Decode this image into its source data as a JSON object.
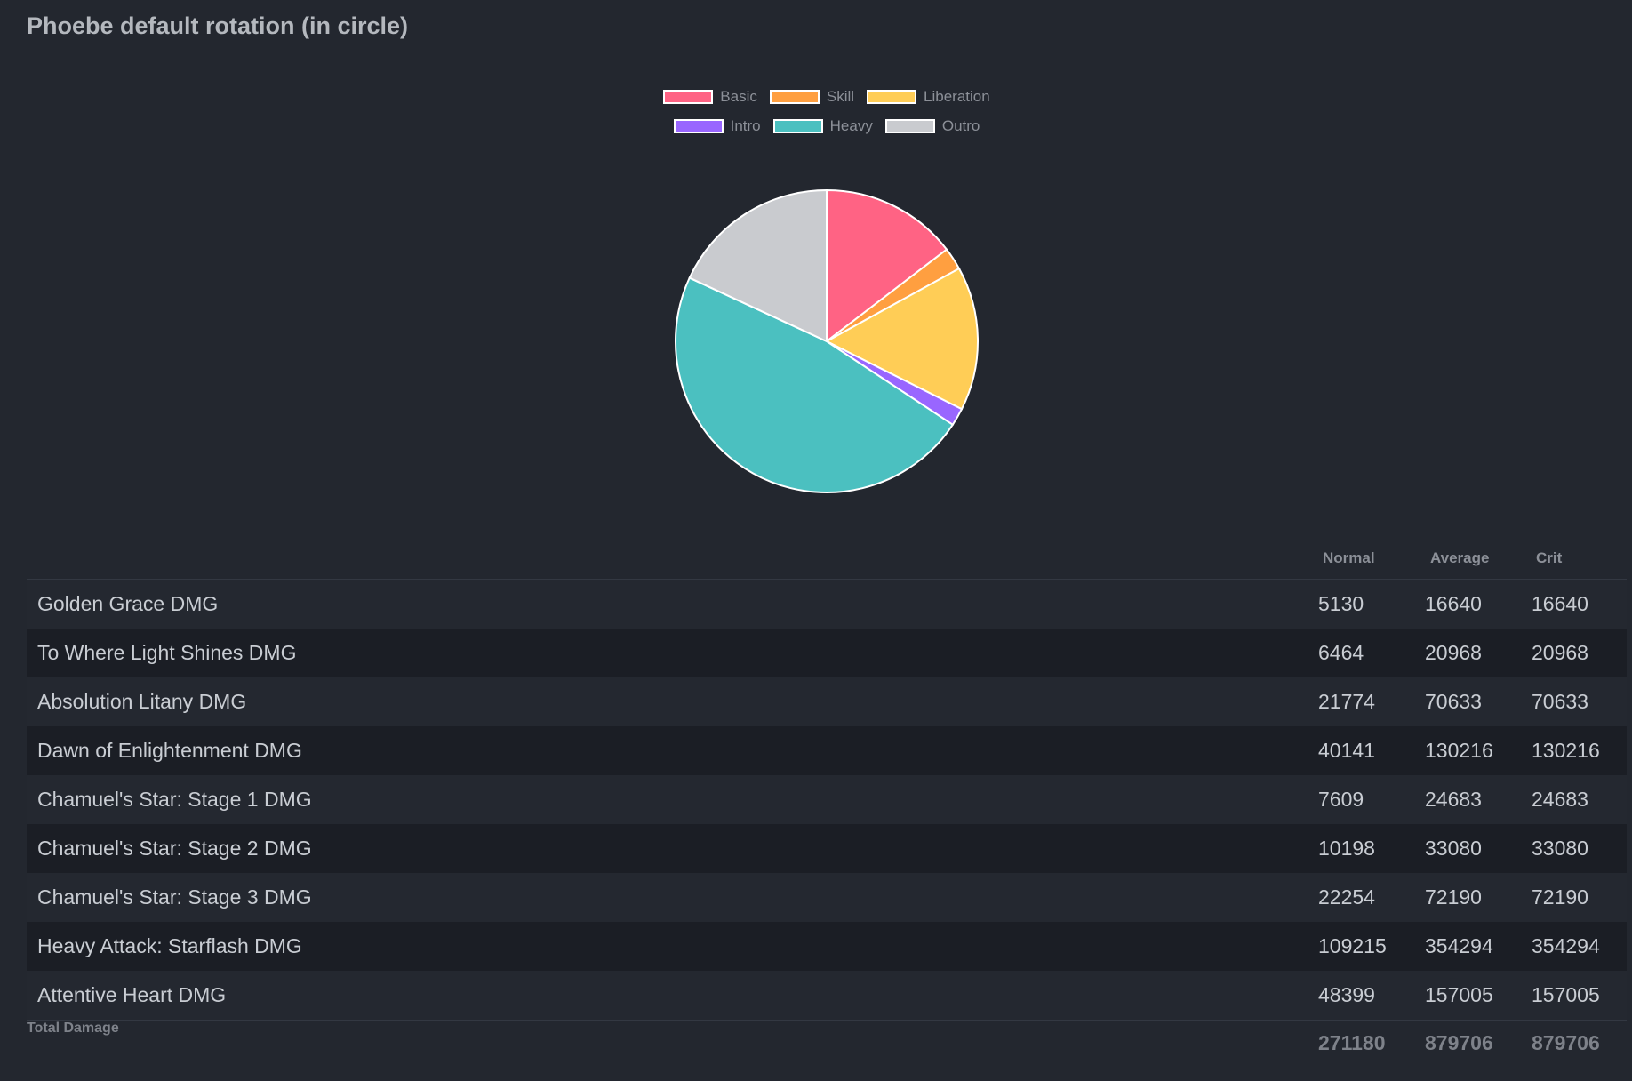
{
  "title": "Phoebe default rotation (in circle)",
  "colors": {
    "background": "#23272f",
    "row_alt": "#1b1e25",
    "slice_border": "#ffffff"
  },
  "chart_data": {
    "type": "pie",
    "legend_position": "top",
    "categories": [
      "Basic",
      "Skill",
      "Liberation",
      "Intro",
      "Heavy",
      "Outro"
    ],
    "values": [
      14.6,
      2.4,
      15.4,
      1.9,
      47.6,
      18.1
    ],
    "colors": [
      "#ff6384",
      "#ff9f40",
      "#ffcd56",
      "#9966ff",
      "#4bc0c0",
      "#c9cbcf"
    ]
  },
  "table": {
    "headers": {
      "normal": "Normal",
      "average": "Average",
      "crit": "Crit"
    },
    "rows": [
      {
        "name": "Golden Grace DMG",
        "normal": "5130",
        "average": "16640",
        "crit": "16640"
      },
      {
        "name": "To Where Light Shines DMG",
        "normal": "6464",
        "average": "20968",
        "crit": "20968"
      },
      {
        "name": "Absolution Litany DMG",
        "normal": "21774",
        "average": "70633",
        "crit": "70633"
      },
      {
        "name": "Dawn of Enlightenment DMG",
        "normal": "40141",
        "average": "130216",
        "crit": "130216"
      },
      {
        "name": "Chamuel's Star: Stage 1 DMG",
        "normal": "7609",
        "average": "24683",
        "crit": "24683"
      },
      {
        "name": "Chamuel's Star: Stage 2 DMG",
        "normal": "10198",
        "average": "33080",
        "crit": "33080"
      },
      {
        "name": "Chamuel's Star: Stage 3 DMG",
        "normal": "22254",
        "average": "72190",
        "crit": "72190"
      },
      {
        "name": "Heavy Attack: Starflash DMG",
        "normal": "109215",
        "average": "354294",
        "crit": "354294"
      },
      {
        "name": "Attentive Heart DMG",
        "normal": "48399",
        "average": "157005",
        "crit": "157005"
      }
    ],
    "total": {
      "name": "Total Damage",
      "normal": "271180",
      "average": "879706",
      "crit": "879706"
    }
  }
}
